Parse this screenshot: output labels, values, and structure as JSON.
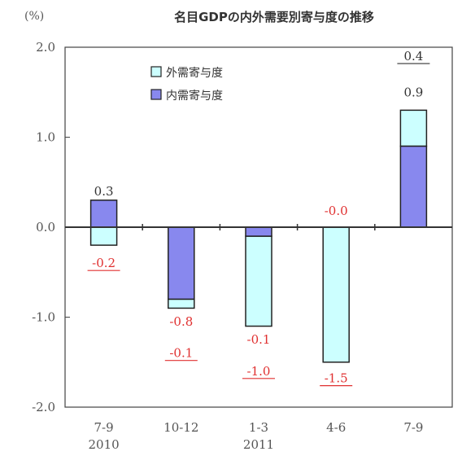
{
  "chart_data": {
    "type": "bar",
    "stacked": true,
    "title": "名目GDPの内外需要別寄与度の推移",
    "unit_label": "(%)",
    "categories": [
      {
        "period": "7-9",
        "year": "2010"
      },
      {
        "period": "10-12",
        "year": ""
      },
      {
        "period": "1-3",
        "year": "2011"
      },
      {
        "period": "4-6",
        "year": ""
      },
      {
        "period": "7-9",
        "year": ""
      }
    ],
    "ylim": [
      -2.0,
      2.0
    ],
    "yticks": [
      "2.0",
      "1.0",
      "0.0",
      "-1.0",
      "-2.0"
    ],
    "series": [
      {
        "name": "外需寄与度",
        "color": "#ccffff",
        "values": [
          -0.2,
          -0.1,
          -1.0,
          -1.5,
          0.4
        ]
      },
      {
        "name": "内需寄与度",
        "color": "#8888ee",
        "values": [
          0.3,
          -0.8,
          -0.1,
          -0.0,
          0.9
        ]
      }
    ],
    "data_labels": [
      [
        {
          "text": "0.3",
          "color": "#333333"
        },
        {
          "text": "-0.2",
          "color": "#e03030",
          "underline": true
        }
      ],
      [
        {
          "text": "-0.8",
          "color": "#e03030",
          "underline": false
        },
        {
          "text": "-0.1",
          "color": "#e03030",
          "underline": true
        }
      ],
      [
        {
          "text": "-0.1",
          "color": "#e03030",
          "underline": false
        },
        {
          "text": "-1.0",
          "color": "#e03030",
          "underline": true
        }
      ],
      [
        {
          "text": "-0.0",
          "color": "#e03030",
          "underline": false
        },
        {
          "text": "-1.5",
          "color": "#e03030",
          "underline": true
        }
      ],
      [
        {
          "text": "0.4",
          "color": "#333333",
          "underline": true
        },
        {
          "text": "0.9",
          "color": "#333333",
          "underline": false
        }
      ]
    ],
    "legend_position": "top-left",
    "grid": false
  }
}
